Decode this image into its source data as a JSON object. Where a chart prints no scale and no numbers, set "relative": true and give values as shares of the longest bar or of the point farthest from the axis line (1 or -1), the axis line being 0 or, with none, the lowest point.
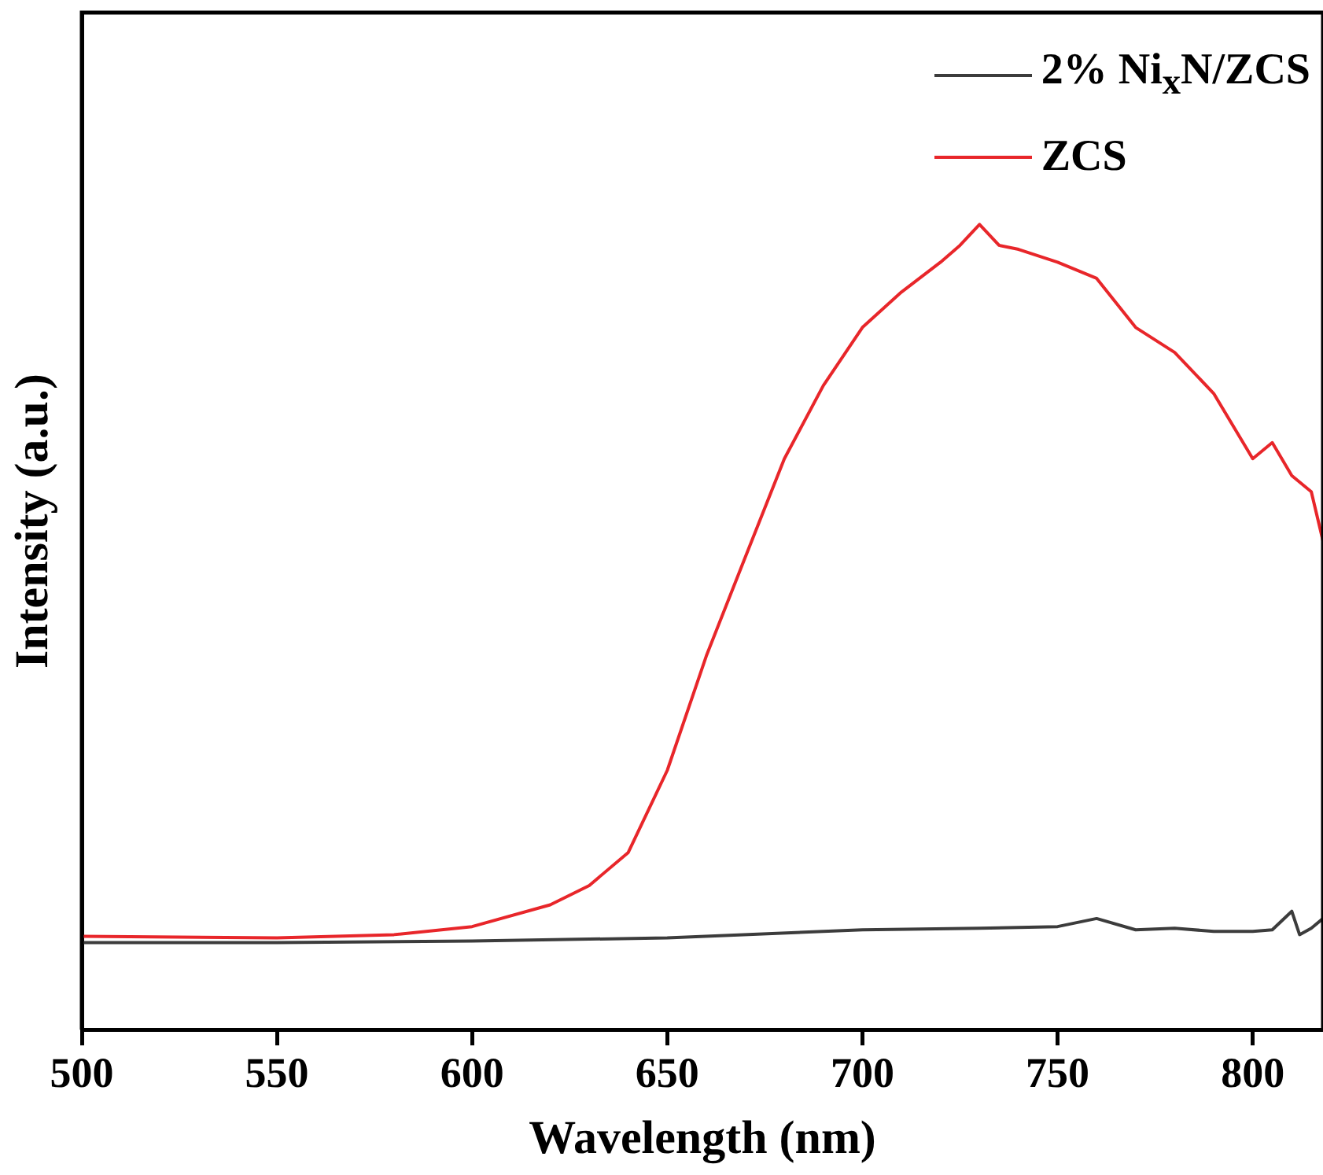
{
  "chart_data": {
    "type": "line",
    "xlabel": "Wavelength (nm)",
    "ylabel": "Intensity (a.u.)",
    "relative": true,
    "xlim": [
      500,
      818
    ],
    "xticks": [
      500,
      550,
      600,
      650,
      700,
      750,
      800
    ],
    "tick_labels": "x",
    "grid": false,
    "legend": "top right",
    "marker": "none",
    "line_style": "solid",
    "series": [
      {
        "name": "2% Ni$_{x}$N/ZCS",
        "color": "#3c3c3c",
        "x": [
          500,
          550,
          600,
          650,
          700,
          730,
          750,
          760,
          770,
          780,
          790,
          800,
          805,
          810,
          812,
          815,
          818
        ],
        "values": [
          0.108,
          0.108,
          0.11,
          0.114,
          0.124,
          0.126,
          0.128,
          0.138,
          0.124,
          0.126,
          0.122,
          0.122,
          0.124,
          0.147,
          0.118,
          0.126,
          0.138
        ]
      },
      {
        "name": "ZCS",
        "color": "#e8262a",
        "x": [
          500,
          550,
          580,
          600,
          620,
          630,
          640,
          650,
          660,
          670,
          680,
          690,
          700,
          710,
          720,
          725,
          730,
          735,
          740,
          750,
          760,
          770,
          780,
          790,
          800,
          805,
          810,
          815,
          818
        ],
        "values": [
          0.116,
          0.114,
          0.118,
          0.128,
          0.155,
          0.179,
          0.22,
          0.322,
          0.464,
          0.587,
          0.709,
          0.8,
          0.872,
          0.916,
          0.953,
          0.974,
          1.0,
          0.974,
          0.969,
          0.953,
          0.933,
          0.872,
          0.841,
          0.79,
          0.709,
          0.729,
          0.688,
          0.668,
          0.607
        ]
      }
    ]
  }
}
